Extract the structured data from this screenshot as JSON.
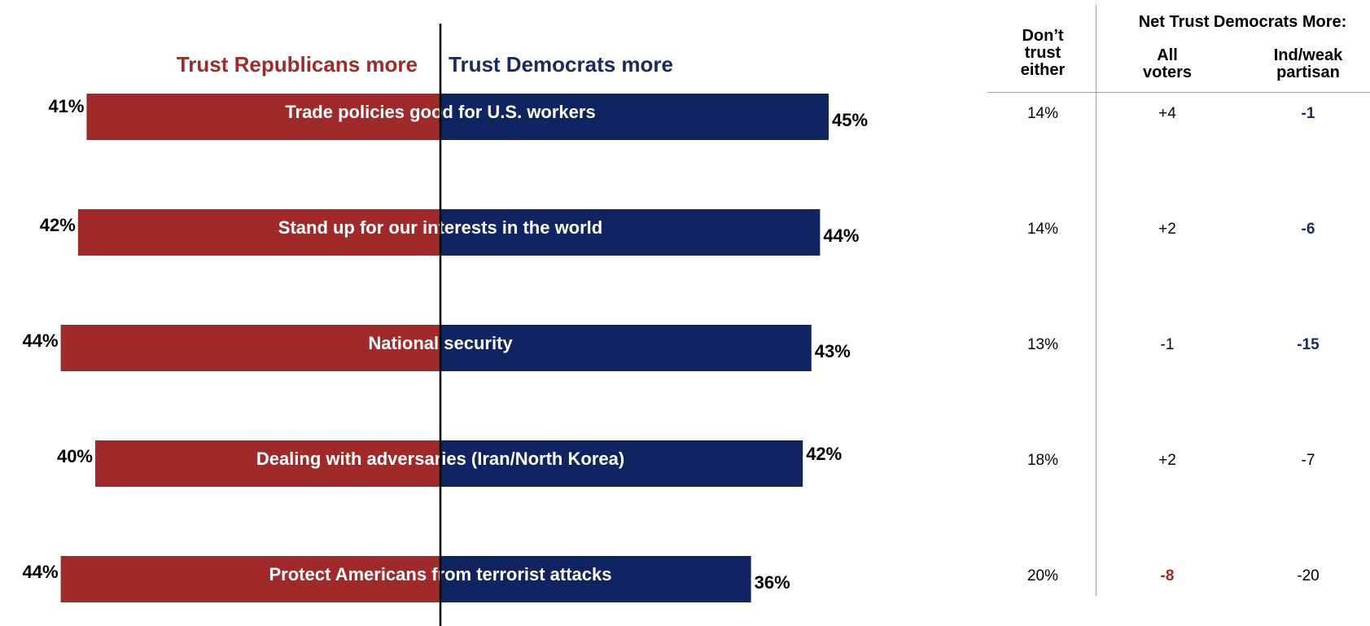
{
  "legend": {
    "republican_label": "Trust Republicans more",
    "democrat_label": "Trust Democrats more"
  },
  "colors": {
    "republican": "#a02a2a",
    "democrat": "#0f2461",
    "divider": "#000000",
    "table_rule": "#a0a0a0"
  },
  "table": {
    "col_neither_header": [
      "Don’t",
      "trust",
      "either"
    ],
    "group_header": "Net Trust Democrats More:",
    "col_all_header": [
      "All",
      "voters"
    ],
    "col_ind_header": [
      "Ind/weak",
      "partisan"
    ],
    "rows": [
      {
        "neither": "14%",
        "all": "+4",
        "all_color": "#000000",
        "all_bold": false,
        "ind": "-1",
        "ind_color": "#1a2a63",
        "ind_bold": true
      },
      {
        "neither": "14%",
        "all": "+2",
        "all_color": "#000000",
        "all_bold": false,
        "ind": "-6",
        "ind_color": "#1a2a63",
        "ind_bold": true
      },
      {
        "neither": "13%",
        "all": "-1",
        "all_color": "#000000",
        "all_bold": false,
        "ind": "-15",
        "ind_color": "#1a2a63",
        "ind_bold": true
      },
      {
        "neither": "18%",
        "all": "+2",
        "all_color": "#000000",
        "all_bold": false,
        "ind": "-7",
        "ind_color": "#000000",
        "ind_bold": false
      },
      {
        "neither": "20%",
        "all": "-8",
        "all_color": "#a02a2a",
        "all_bold": true,
        "ind": "-20",
        "ind_color": "#000000",
        "ind_bold": false
      }
    ]
  },
  "chart_data": {
    "type": "bar",
    "orientation": "horizontal-diverging",
    "categories": [
      "Trade policies good for U.S. workers",
      "Stand up for our interests in the world",
      "National security",
      "Dealing with adversaries (Iran/North Korea)",
      "Protect Americans from terrorist attacks"
    ],
    "series": [
      {
        "name": "Trust Republicans more",
        "values": [
          41,
          42,
          44,
          40,
          44
        ],
        "labels": [
          "41%",
          "42%",
          "44%",
          "40%",
          "44%"
        ]
      },
      {
        "name": "Trust Democrats more",
        "values": [
          45,
          44,
          43,
          42,
          36
        ],
        "labels": [
          "45%",
          "44%",
          "43%",
          "42%",
          "36%"
        ]
      }
    ],
    "unit": "%",
    "xlim": [
      -44,
      45
    ],
    "grid": false,
    "legend_position": "top"
  }
}
